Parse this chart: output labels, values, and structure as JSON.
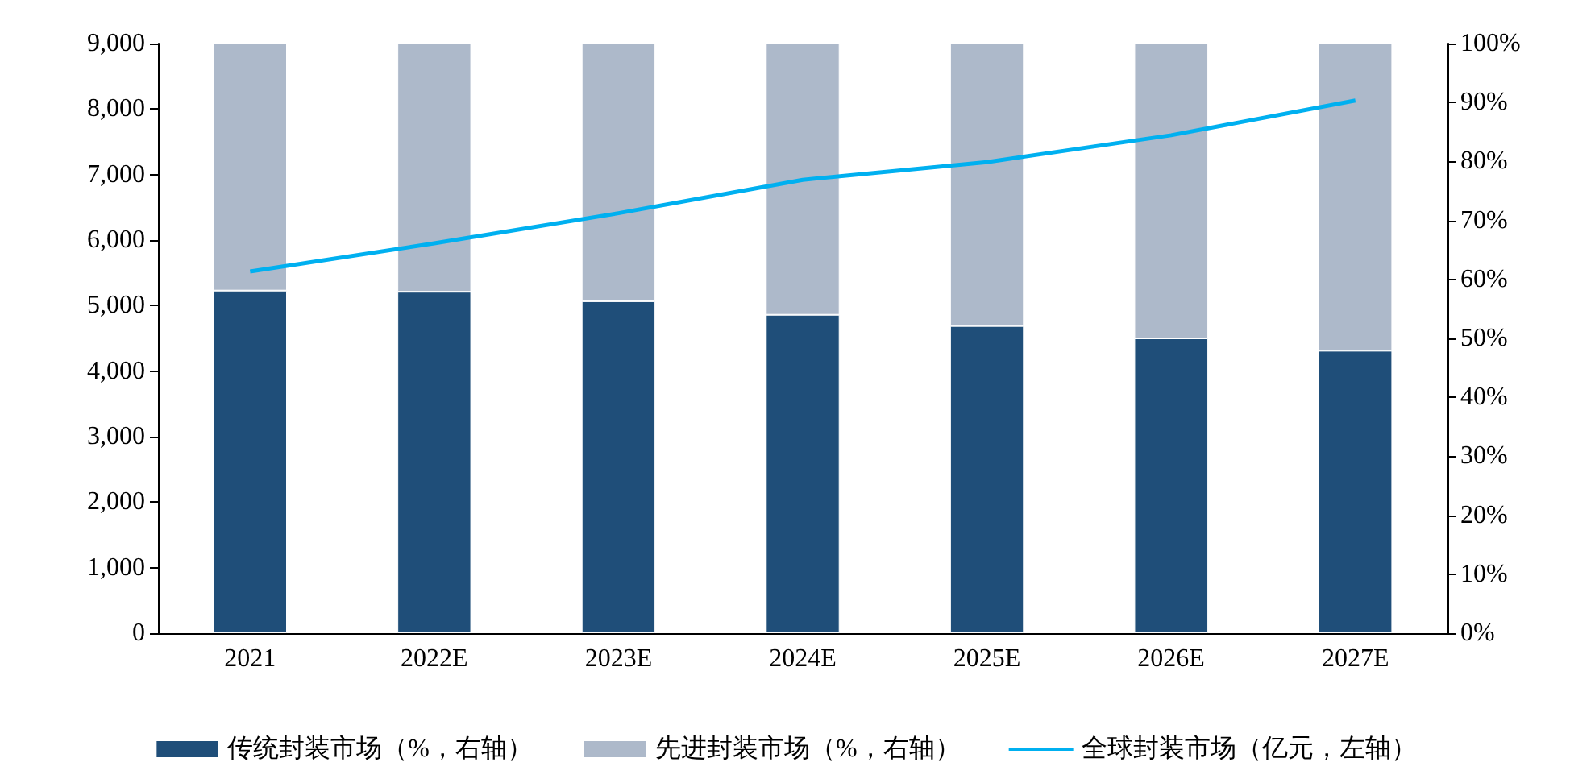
{
  "chart_data": {
    "type": "bar",
    "stacked": true,
    "categories": [
      "2021",
      "2022E",
      "2023E",
      "2024E",
      "2025E",
      "2026E",
      "2027E"
    ],
    "series": [
      {
        "name": "传统封装市场（%，右轴）",
        "color": "#1f4e79",
        "axis": "y2",
        "values": [
          58.1,
          57.9,
          56.3,
          54.0,
          52.1,
          50.0,
          47.9
        ]
      },
      {
        "name": "先进封装市场（%，右轴）",
        "color": "#adb9ca",
        "axis": "y2",
        "values": [
          41.9,
          42.1,
          43.7,
          46.0,
          47.9,
          50.0,
          52.1
        ]
      },
      {
        "name": "全球封装市场（亿元，左轴）",
        "color": "#00b0f0",
        "type": "line",
        "marker": "none",
        "values": [
          5520,
          5950,
          6410,
          6920,
          7190,
          7600,
          8130
        ]
      }
    ],
    "ylim": [
      0,
      9000
    ],
    "yticks": [
      {
        "value": 0,
        "label": "0"
      },
      {
        "value": 1000,
        "label": "1,000"
      },
      {
        "value": 2000,
        "label": "2,000"
      },
      {
        "value": 3000,
        "label": "3,000"
      },
      {
        "value": 4000,
        "label": "4,000"
      },
      {
        "value": 5000,
        "label": "5,000"
      },
      {
        "value": 6000,
        "label": "6,000"
      },
      {
        "value": 7000,
        "label": "7,000"
      },
      {
        "value": 8000,
        "label": "8,000"
      },
      {
        "value": 9000,
        "label": "9,000"
      }
    ],
    "y2lim": [
      0,
      100
    ],
    "y2ticks": [
      {
        "value": 0,
        "label": "0%"
      },
      {
        "value": 10,
        "label": "10%"
      },
      {
        "value": 20,
        "label": "20%"
      },
      {
        "value": 30,
        "label": "30%"
      },
      {
        "value": 40,
        "label": "40%"
      },
      {
        "value": 50,
        "label": "50%"
      },
      {
        "value": 60,
        "label": "60%"
      },
      {
        "value": 70,
        "label": "70%"
      },
      {
        "value": 80,
        "label": "80%"
      },
      {
        "value": 90,
        "label": "90%"
      },
      {
        "value": 100,
        "label": "100%"
      }
    ],
    "grid": false,
    "legend": "bottom"
  }
}
